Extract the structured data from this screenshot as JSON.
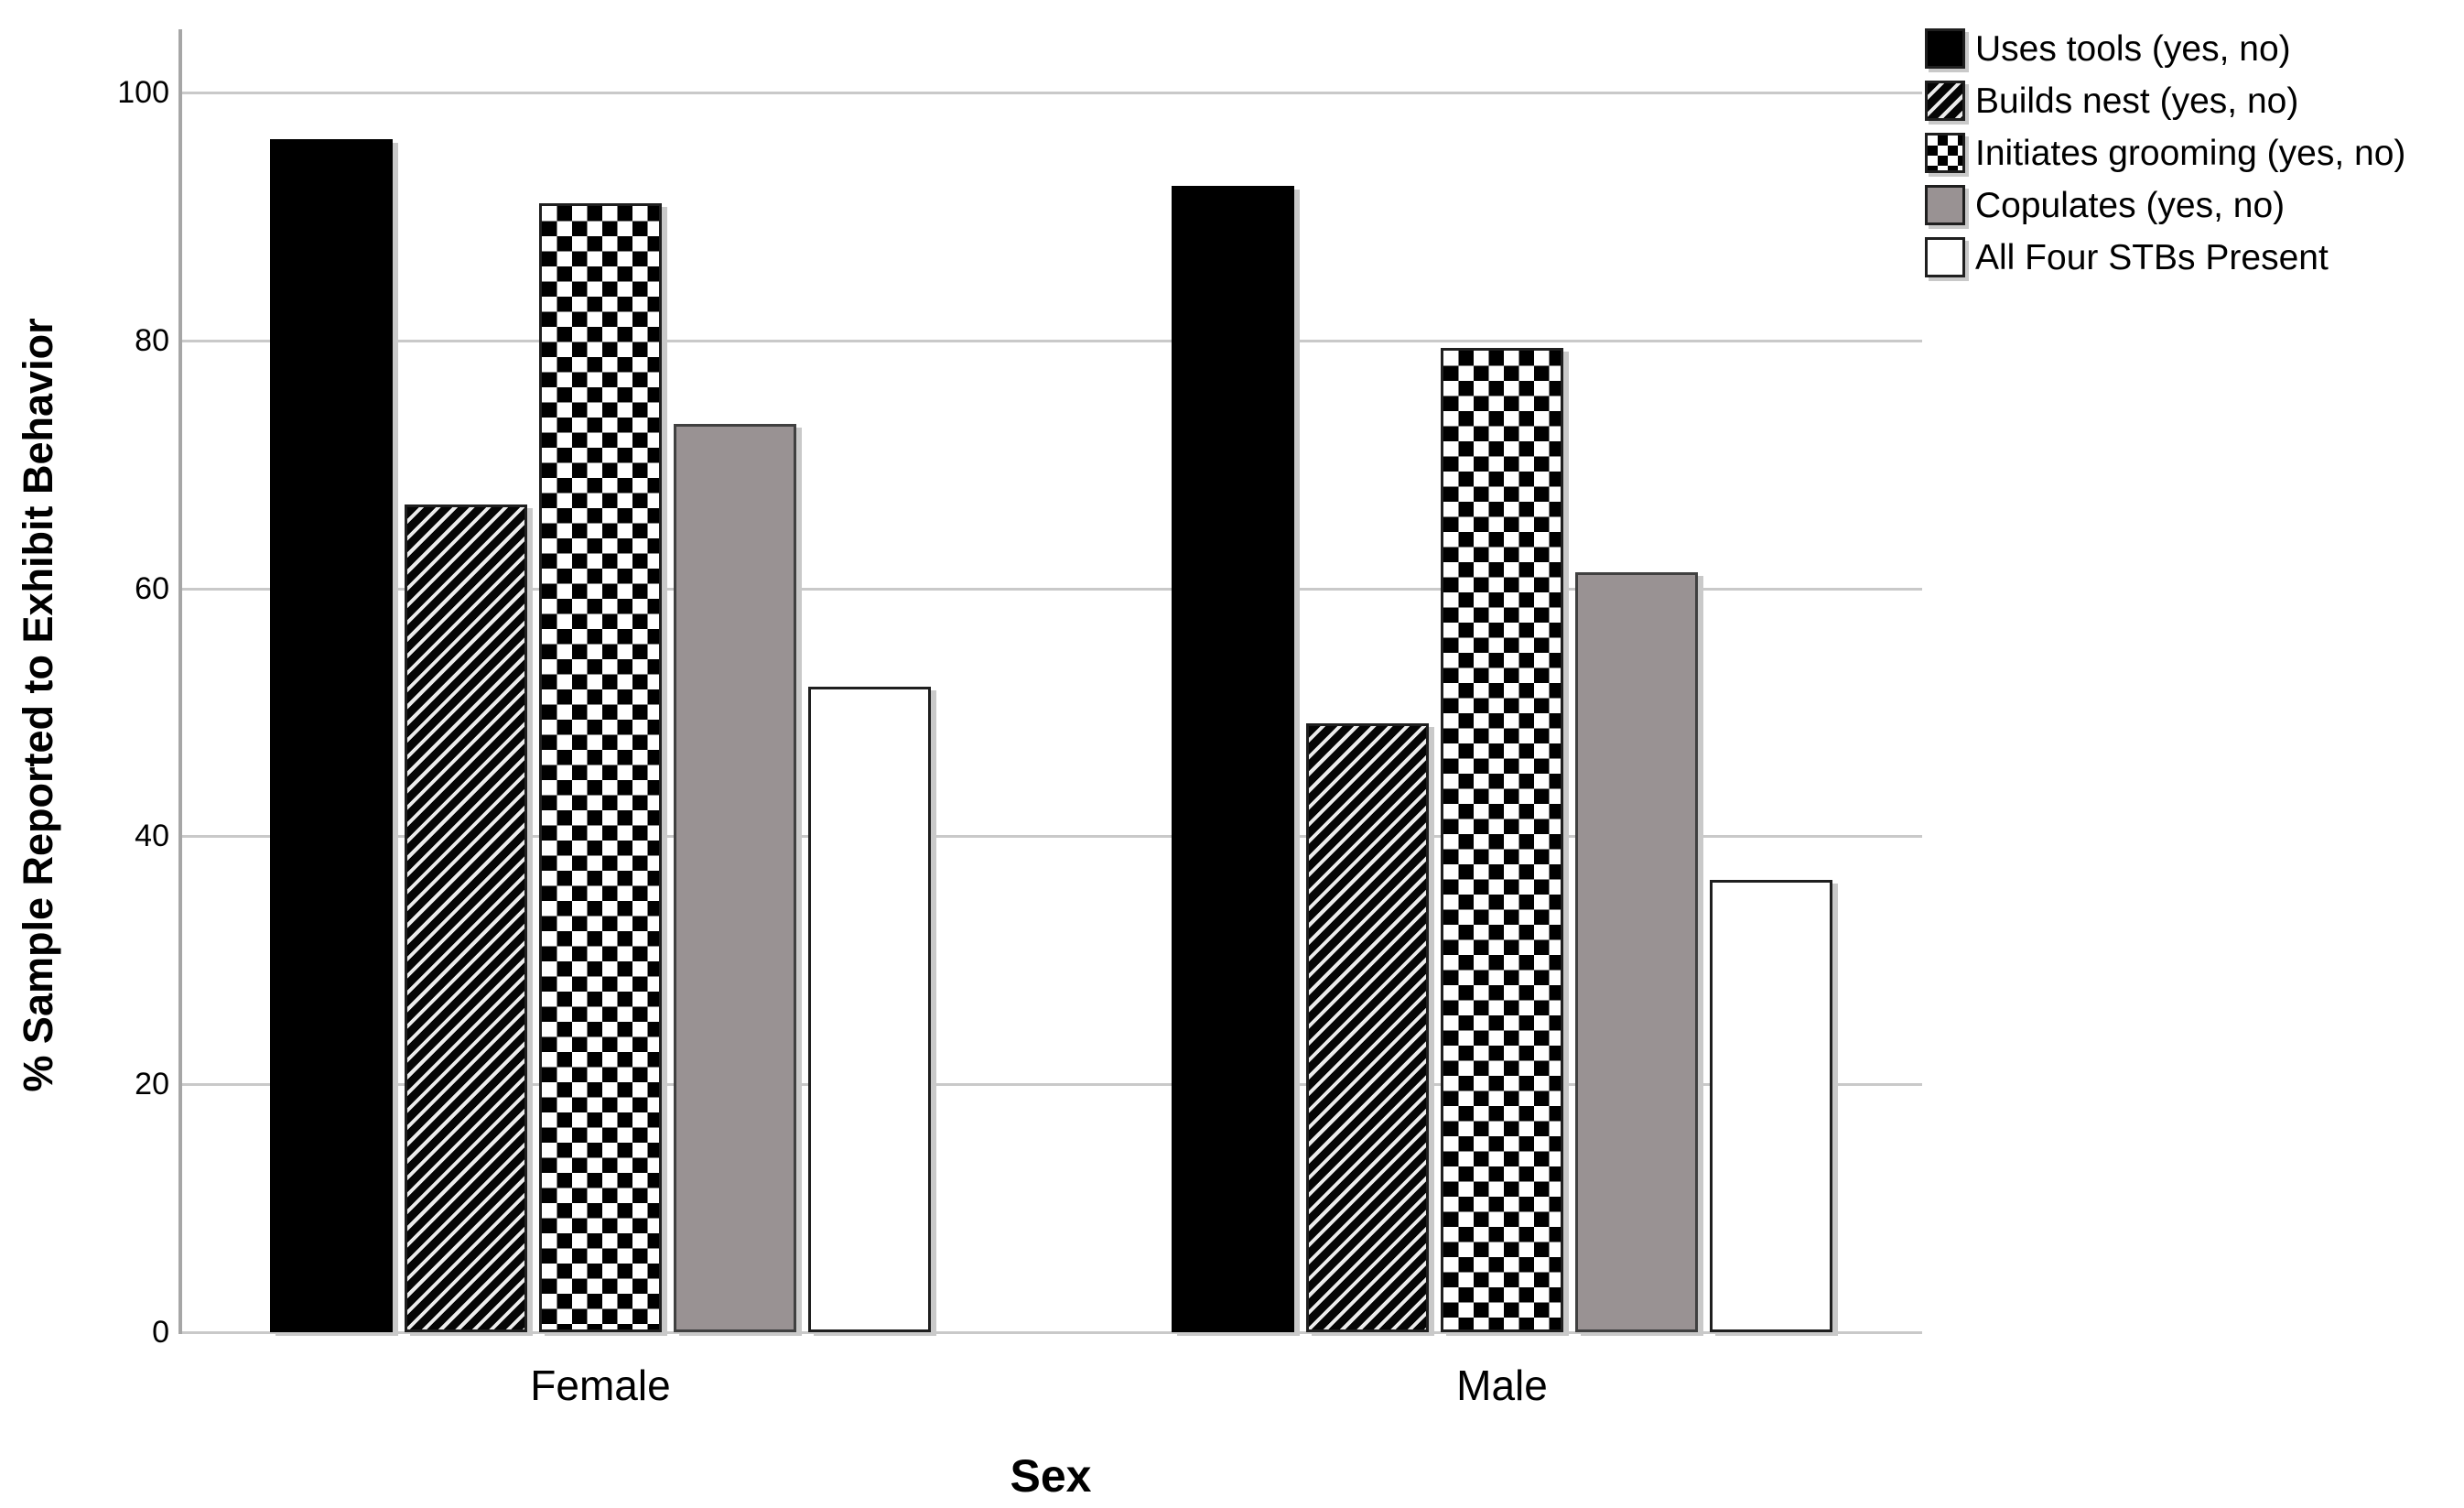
{
  "chart_data": {
    "type": "bar",
    "title": "",
    "xlabel": "Sex",
    "ylabel": "% Sample Reported to Exhibit Behavior",
    "categories": [
      "Female",
      "Male"
    ],
    "series": [
      {
        "name": "Uses tools (yes, no)",
        "pattern": "solid-black",
        "values": [
          96.2,
          92.5
        ]
      },
      {
        "name": "Builds nest (yes, no)",
        "pattern": "diagonal-hatch",
        "values": [
          66.8,
          49.1
        ]
      },
      {
        "name": "Initiates grooming (yes, no)",
        "pattern": "checkerboard",
        "values": [
          91.1,
          79.4
        ]
      },
      {
        "name": "Copulates (yes, no)",
        "pattern": "solid-gray",
        "values": [
          73.3,
          61.3
        ]
      },
      {
        "name": "All Four STBs Present",
        "pattern": "solid-white",
        "values": [
          52.1,
          36.5
        ]
      }
    ],
    "yticks": [
      0,
      20,
      40,
      60,
      80,
      100
    ],
    "ylim": [
      0,
      100
    ],
    "grid": true,
    "legend_position": "top-right"
  },
  "colors": {
    "background": "#ffffff",
    "gridline": "#c9c9c9",
    "axis_line": "#a6a6a6",
    "bar_border": "#1f1f1f",
    "bar_gray_fill": "#999293",
    "shadow": "#c9c9c9",
    "text": "#000000"
  }
}
